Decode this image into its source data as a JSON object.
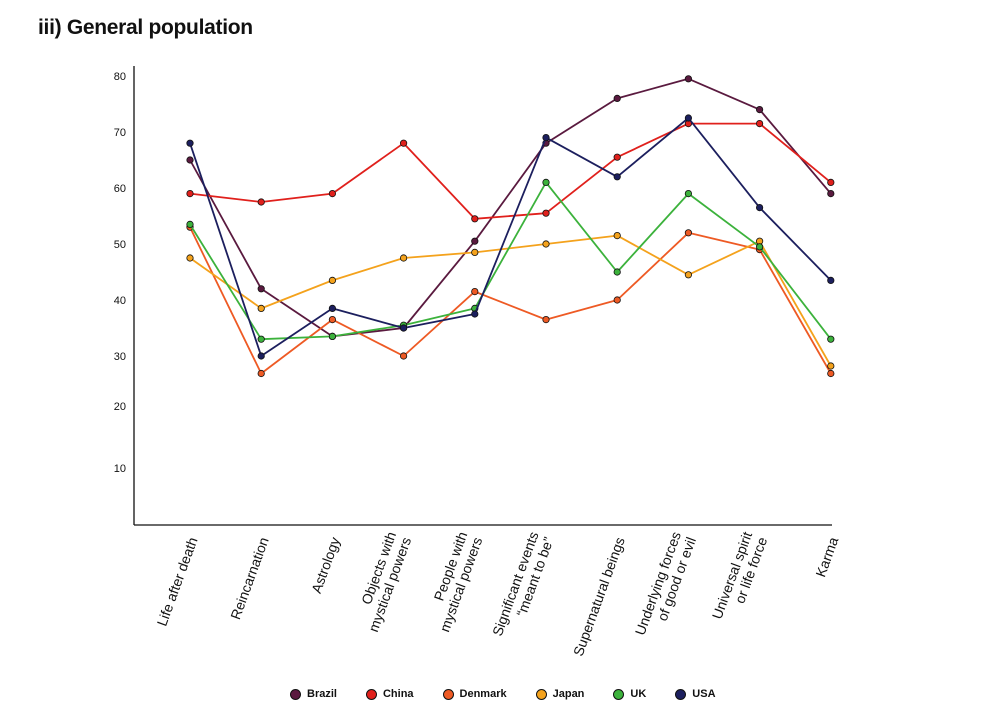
{
  "title": "iii) General population",
  "chart_data": {
    "type": "line",
    "categories": [
      [
        "Life after death"
      ],
      [
        "Reincarnation"
      ],
      [
        "Astrology"
      ],
      [
        "Objects with",
        "mystical powers"
      ],
      [
        "People with",
        "mystical powers"
      ],
      [
        "Significant events",
        "“meant to be”"
      ],
      [
        "Supernatural beings"
      ],
      [
        "Underlying forces",
        "of good or evil"
      ],
      [
        "Universal spirit",
        "or life force"
      ],
      [
        "Karma"
      ]
    ],
    "yticks": [
      10,
      20,
      30,
      40,
      50,
      60,
      70,
      80
    ],
    "ylim": [
      0,
      80
    ],
    "xlabel": "",
    "ylabel": "",
    "grid": false,
    "legend_position": "bottom",
    "series": [
      {
        "name": "Brazil",
        "color": "#5a1a3f",
        "values": [
          65,
          42,
          33.5,
          35,
          50.5,
          68,
          76,
          79.5,
          74,
          59
        ]
      },
      {
        "name": "China",
        "color": "#e0201c",
        "values": [
          59,
          57.5,
          59,
          68,
          54.5,
          55.5,
          65.5,
          71.5,
          71.5,
          61
        ]
      },
      {
        "name": "Denmark",
        "color": "#ee5a24",
        "values": [
          53,
          26.5,
          36.5,
          30,
          41.5,
          36.5,
          40,
          52,
          49,
          26.5
        ]
      },
      {
        "name": "Japan",
        "color": "#f4a21c",
        "values": [
          47.5,
          38.5,
          43.5,
          47.5,
          48.5,
          50,
          51.5,
          44.5,
          50.5,
          28
        ]
      },
      {
        "name": "UK",
        "color": "#3cb23c",
        "values": [
          53.5,
          33,
          33.5,
          35.5,
          38.5,
          61,
          45,
          59,
          49.5,
          33
        ]
      },
      {
        "name": "USA",
        "color": "#1c1f5e",
        "values": [
          68,
          30,
          38.5,
          35,
          37.5,
          69,
          62,
          72.5,
          56.5,
          43.5
        ]
      }
    ]
  }
}
